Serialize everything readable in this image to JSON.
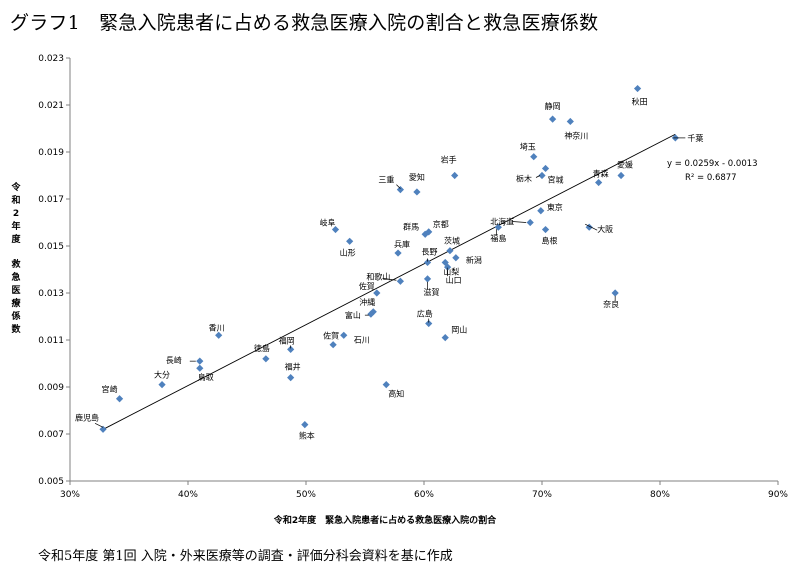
{
  "page": {
    "title": "グラフ1　緊急入院患者に占める救急医療入院の割合と救急医療係数",
    "source": "令和5年度 第1回 入院・外来医療等の調査・評価分科会資料を基に作成"
  },
  "chart_data": {
    "type": "scatter",
    "xlabel": "令和2年度　緊急入院患者に占める救急医療入院の割合",
    "ylabel": "令和2年度　救急医療係数",
    "xlim": [
      0.3,
      0.9
    ],
    "ylim": [
      0.005,
      0.023
    ],
    "x_ticks": [
      0.3,
      0.4,
      0.5,
      0.6,
      0.7,
      0.8,
      0.9
    ],
    "x_tick_labels": [
      "30%",
      "40%",
      "50%",
      "60%",
      "70%",
      "80%",
      "90%"
    ],
    "y_ticks": [
      0.005,
      0.007,
      0.009,
      0.011,
      0.013,
      0.015,
      0.017,
      0.019,
      0.021,
      0.023
    ],
    "y_tick_labels": [
      "0.005",
      "0.007",
      "0.009",
      "0.011",
      "0.013",
      "0.015",
      "0.017",
      "0.019",
      "0.021",
      "0.023"
    ],
    "grid": false,
    "marker_color": "#4f81bd",
    "trendline": {
      "slope": 0.0259,
      "intercept": -0.0013,
      "x_range": [
        0.328,
        0.813
      ]
    },
    "annotations": [
      "y = 0.0259x - 0.0013",
      "R² = 0.6877"
    ],
    "points": [
      {
        "name": "秋田",
        "x": 0.781,
        "y": 0.0217
      },
      {
        "name": "静岡",
        "x": 0.709,
        "y": 0.0204
      },
      {
        "name": "神奈川",
        "x": 0.724,
        "y": 0.0203
      },
      {
        "name": "千葉",
        "x": 0.813,
        "y": 0.0196
      },
      {
        "name": "埼玉",
        "x": 0.693,
        "y": 0.0188
      },
      {
        "name": "宮城",
        "x": 0.703,
        "y": 0.0183
      },
      {
        "name": "栃木",
        "x": 0.7,
        "y": 0.018
      },
      {
        "name": "青森",
        "x": 0.748,
        "y": 0.0177
      },
      {
        "name": "愛媛",
        "x": 0.767,
        "y": 0.018
      },
      {
        "name": "岩手",
        "x": 0.626,
        "y": 0.018
      },
      {
        "name": "三重",
        "x": 0.58,
        "y": 0.0174
      },
      {
        "name": "愛知",
        "x": 0.594,
        "y": 0.0173
      },
      {
        "name": "東京",
        "x": 0.699,
        "y": 0.0165
      },
      {
        "name": "北海道",
        "x": 0.69,
        "y": 0.016
      },
      {
        "name": "大阪",
        "x": 0.74,
        "y": 0.0158
      },
      {
        "name": "島根",
        "x": 0.703,
        "y": 0.0157
      },
      {
        "name": "福島",
        "x": 0.663,
        "y": 0.0158
      },
      {
        "name": "岐阜",
        "x": 0.525,
        "y": 0.0157
      },
      {
        "name": "群馬",
        "x": 0.601,
        "y": 0.0155
      },
      {
        "name": "京都",
        "x": 0.604,
        "y": 0.0156
      },
      {
        "name": "山形",
        "x": 0.537,
        "y": 0.0152
      },
      {
        "name": "兵庫",
        "x": 0.578,
        "y": 0.0147
      },
      {
        "name": "長野",
        "x": 0.603,
        "y": 0.0143
      },
      {
        "name": "茨城",
        "x": 0.622,
        "y": 0.0148
      },
      {
        "name": "新潟",
        "x": 0.627,
        "y": 0.0145
      },
      {
        "name": "山梨",
        "x": 0.618,
        "y": 0.0143
      },
      {
        "name": "山口",
        "x": 0.62,
        "y": 0.0141
      },
      {
        "name": "和歌山",
        "x": 0.58,
        "y": 0.0135
      },
      {
        "name": "滋賀",
        "x": 0.603,
        "y": 0.0136
      },
      {
        "name": "奈良",
        "x": 0.762,
        "y": 0.013
      },
      {
        "name": "佐賀",
        "x": 0.56,
        "y": 0.013
      },
      {
        "name": "沖縄",
        "x": 0.557,
        "y": 0.0122
      },
      {
        "name": "富山",
        "x": 0.555,
        "y": 0.0121
      },
      {
        "name": "広島",
        "x": 0.604,
        "y": 0.0117
      },
      {
        "name": "香川",
        "x": 0.426,
        "y": 0.0112
      },
      {
        "name": "岡山",
        "x": 0.618,
        "y": 0.0111
      },
      {
        "name": "石川",
        "x": 0.532,
        "y": 0.0112
      },
      {
        "name": "佐賀",
        "x": 0.523,
        "y": 0.0108
      },
      {
        "name": "福岡",
        "x": 0.487,
        "y": 0.0106
      },
      {
        "name": "徳島",
        "x": 0.466,
        "y": 0.0102
      },
      {
        "name": "長崎",
        "x": 0.41,
        "y": 0.0101
      },
      {
        "name": "鳥取",
        "x": 0.41,
        "y": 0.0098
      },
      {
        "name": "福井",
        "x": 0.487,
        "y": 0.0094
      },
      {
        "name": "大分",
        "x": 0.378,
        "y": 0.0091
      },
      {
        "name": "高知",
        "x": 0.568,
        "y": 0.0091
      },
      {
        "name": "宮崎",
        "x": 0.342,
        "y": 0.0085
      },
      {
        "name": "熊本",
        "x": 0.499,
        "y": 0.0074
      },
      {
        "name": "鹿児島",
        "x": 0.328,
        "y": 0.0072
      }
    ]
  }
}
